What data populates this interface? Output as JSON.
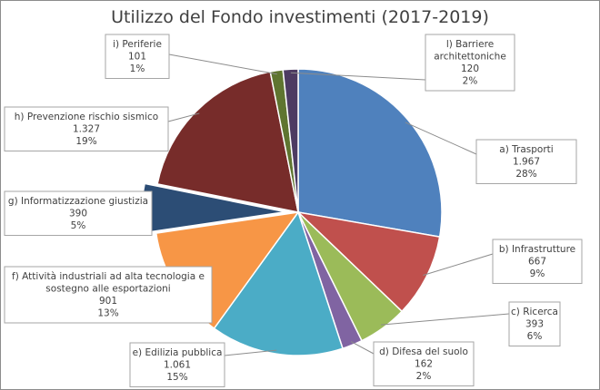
{
  "chart_data": {
    "type": "pie",
    "title": "Utilizzo del Fondo investimenti (2017-2019)",
    "slices": [
      {
        "name": "a) Trasporti",
        "value": 1967,
        "value_label": "1.967",
        "percent_label": "28%",
        "color": "#4f81bd",
        "explode": 0
      },
      {
        "name": "b) Infrastrutture",
        "value": 667,
        "value_label": "667",
        "percent_label": "9%",
        "color": "#c0504d",
        "explode": 0
      },
      {
        "name": "c) Ricerca",
        "value": 393,
        "value_label": "393",
        "percent_label": "6%",
        "color": "#9bbb59",
        "explode": 0
      },
      {
        "name": "d) Difesa del suolo",
        "value": 162,
        "value_label": "162",
        "percent_label": "2%",
        "color": "#8064a2",
        "explode": 0
      },
      {
        "name": "e) Edilizia pubblica",
        "value": 1061,
        "value_label": "1.061",
        "percent_label": "15%",
        "color": "#4bacc6",
        "explode": 0
      },
      {
        "name": "f) Attività industriali ad alta tecnologia e sostegno alle esportazioni",
        "value": 901,
        "value_label": "901",
        "percent_label": "13%",
        "color": "#f79646",
        "explode": 0
      },
      {
        "name": "g) Informatizzazione giustizia",
        "value": 390,
        "value_label": "390",
        "percent_label": "5%",
        "color": "#2c4d75",
        "explode": 1
      },
      {
        "name": "h) Prevenzione rischio sismico",
        "value": 1327,
        "value_label": "1.327",
        "percent_label": "19%",
        "color": "#772c2a",
        "explode": 0
      },
      {
        "name": "i) Periferie",
        "value": 101,
        "value_label": "101",
        "percent_label": "1%",
        "color": "#5f7530",
        "explode": 0
      },
      {
        "name": "l) Barriere architettoniche",
        "value": 120,
        "value_label": "120",
        "percent_label": "2%",
        "color": "#4d3b62",
        "explode": 0
      }
    ]
  }
}
